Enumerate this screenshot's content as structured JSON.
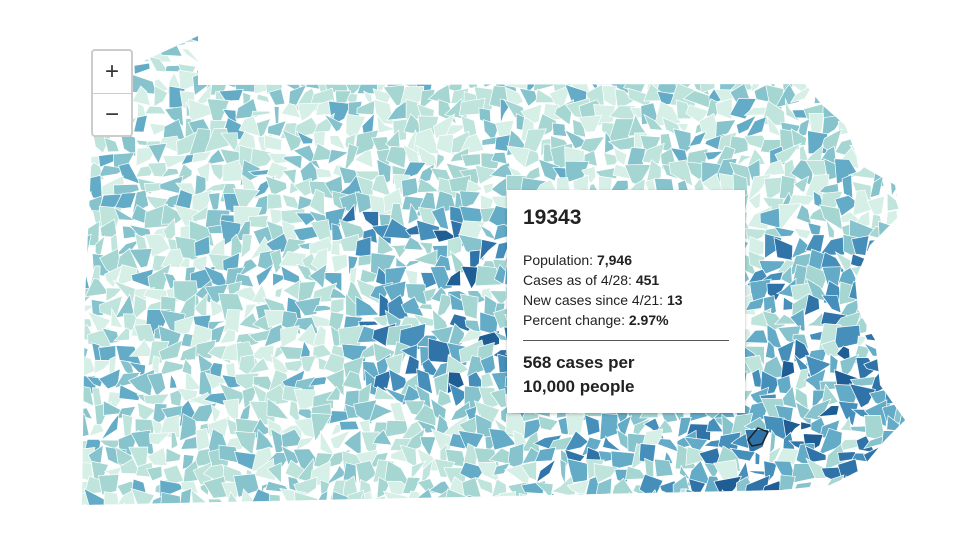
{
  "zoom": {
    "in": "+",
    "out": "−"
  },
  "tooltip": {
    "title": "19343",
    "rows": [
      {
        "label": "Population:",
        "value": "7,946"
      },
      {
        "label": "Cases as of 4/28:",
        "value": "451"
      },
      {
        "label": "New cases since 4/21:",
        "value": "13"
      },
      {
        "label": "Percent change:",
        "value": "2.97%"
      }
    ],
    "summary": [
      "568 cases per",
      "10,000 people"
    ]
  }
}
